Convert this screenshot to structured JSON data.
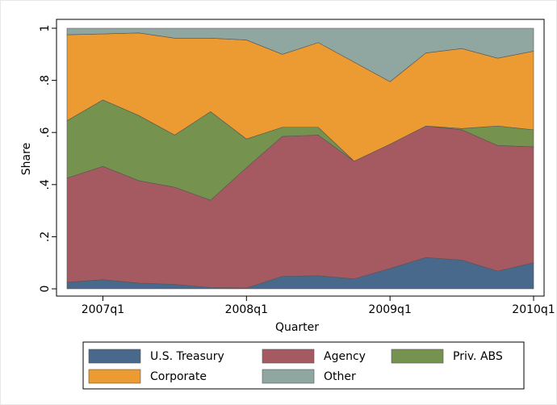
{
  "chart_data": {
    "type": "stacked_area",
    "xlabel": "Quarter",
    "ylabel": "Share",
    "categories": [
      null,
      "2007q1",
      null,
      null,
      null,
      "2008q1",
      null,
      null,
      null,
      "2009q1",
      null,
      null,
      null,
      "2010q1"
    ],
    "series": [
      {
        "name": "U.S. Treasury",
        "color": "#49698c",
        "values": [
          0.025,
          0.035,
          0.022,
          0.017,
          0.005,
          0.003,
          0.048,
          0.05,
          0.038,
          0.078,
          0.12,
          0.11,
          0.068,
          0.1
        ]
      },
      {
        "name": "Agency",
        "color": "#a45a60",
        "values": [
          0.4,
          0.435,
          0.393,
          0.373,
          0.335,
          0.462,
          0.537,
          0.54,
          0.452,
          0.477,
          0.505,
          0.5,
          0.482,
          0.445
        ]
      },
      {
        "name": "Priv. ABS",
        "color": "#76924f",
        "values": [
          0.22,
          0.255,
          0.25,
          0.2,
          0.34,
          0.11,
          0.035,
          0.03,
          0,
          0,
          0,
          0.005,
          0.075,
          0.065
        ]
      },
      {
        "name": "Corporate",
        "color": "#ec9b33",
        "values": [
          0.33,
          0.253,
          0.317,
          0.372,
          0.282,
          0.38,
          0.28,
          0.325,
          0.38,
          0.24,
          0.28,
          0.307,
          0.26,
          0.302
        ]
      },
      {
        "name": "Other",
        "color": "#8fa7a0",
        "values": [
          0.025,
          0.022,
          0.018,
          0.038,
          0.038,
          0.045,
          0.1,
          0.055,
          0.13,
          0.205,
          0.095,
          0.078,
          0.115,
          0.088
        ]
      }
    ],
    "ylim": [
      0,
      1
    ],
    "yticks": [
      0,
      {
        "value": 0.2,
        "label": ".2"
      },
      {
        "value": 0.4,
        "label": ".4"
      },
      {
        "value": 0.6,
        "label": ".6"
      },
      {
        "value": 0.8,
        "label": ".8"
      },
      1
    ],
    "grid": false
  }
}
